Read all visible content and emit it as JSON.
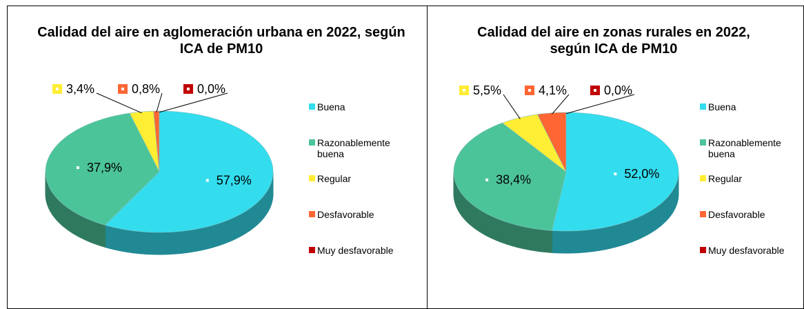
{
  "chart_data": [
    {
      "type": "pie",
      "title": "Calidad del aire en aglomeración urbana en 2022, según ICA de PM10",
      "categories": [
        "Buena",
        "Razonablemente buena",
        "Regular",
        "Desfavorable",
        "Muy desfavorable"
      ],
      "values": [
        57.9,
        37.9,
        3.4,
        0.8,
        0.0
      ],
      "value_labels": [
        "57,9%",
        "37,9%",
        "3,4%",
        "0,8%",
        "0,0%"
      ],
      "colors": [
        "#33ddee",
        "#4cc49a",
        "#ffee33",
        "#ff6633",
        "#c00000"
      ]
    },
    {
      "type": "pie",
      "title": "Calidad del aire en zonas rurales en 2022, según ICA de PM10",
      "categories": [
        "Buena",
        "Razonablemente buena",
        "Regular",
        "Desfavorable",
        "Muy desfavorable"
      ],
      "values": [
        52.0,
        38.4,
        5.5,
        4.1,
        0.0
      ],
      "value_labels": [
        "52,0%",
        "38,4%",
        "5,5%",
        "4,1%",
        "0,0%"
      ],
      "colors": [
        "#33ddee",
        "#4cc49a",
        "#ffee33",
        "#ff6633",
        "#c00000"
      ]
    }
  ]
}
